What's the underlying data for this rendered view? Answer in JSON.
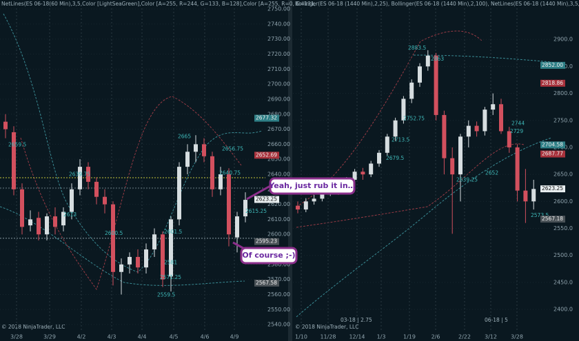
{
  "chart_data": [
    {
      "type": "candlestick",
      "title": "NetLines(ES 06-18(60 Min),3,5,Color [LightSeaGreen],Color [A=255, R=244, G=133, B=128],Color [A=255, R=0, G=131,",
      "footer": "© 2018 NinjaTrader, LLC",
      "x_labels": [
        "3/28",
        "3/29",
        "4/2",
        "4/3",
        "4/4",
        "4/5",
        "4/6",
        "4/9"
      ],
      "open": [
        2675,
        2668,
        2630,
        2606,
        2611,
        2600,
        2612,
        2606,
        2615,
        2630,
        2645,
        2635,
        2625,
        2620,
        2575,
        2580,
        2585,
        2578,
        2590,
        2600,
        2572,
        2610,
        2645,
        2655,
        2660,
        2652,
        2630,
        2640,
        2598,
        2612
      ],
      "high": [
        2680,
        2672,
        2634,
        2616,
        2615,
        2614,
        2618,
        2618,
        2634,
        2650,
        2648,
        2638,
        2630,
        2622,
        2584,
        2588,
        2590,
        2594,
        2604,
        2602,
        2612,
        2648,
        2660,
        2666,
        2664,
        2655,
        2645,
        2644,
        2615,
        2628
      ],
      "low": [
        2664,
        2626,
        2600,
        2602,
        2596,
        2596,
        2600,
        2602,
        2610,
        2626,
        2630,
        2620,
        2614,
        2566,
        2560,
        2574,
        2574,
        2574,
        2585,
        2565,
        2562,
        2606,
        2640,
        2648,
        2648,
        2625,
        2626,
        2592,
        2588,
        2608
      ],
      "close": [
        2670,
        2630,
        2605,
        2610,
        2600,
        2612,
        2605,
        2615,
        2630,
        2645,
        2635,
        2625,
        2620,
        2575,
        2580,
        2585,
        2578,
        2590,
        2600,
        2570,
        2610,
        2645,
        2655,
        2660,
        2652,
        2630,
        2640,
        2600,
        2612,
        2623
      ],
      "ylim": [
        2535,
        2756
      ],
      "yticks": [
        {
          "value": 2540,
          "label": "2540.00"
        },
        {
          "value": 2550,
          "label": "2550.00"
        },
        {
          "value": 2560,
          "label": "2560.00"
        },
        {
          "value": 2570,
          "label": "2570.00"
        },
        {
          "value": 2580,
          "label": "2580.00"
        },
        {
          "value": 2590,
          "label": "2590.00"
        },
        {
          "value": 2600,
          "label": "2600.00"
        },
        {
          "value": 2610,
          "label": "2610.00"
        },
        {
          "value": 2620,
          "label": "2620.00"
        },
        {
          "value": 2630,
          "label": "2630.00"
        },
        {
          "value": 2640,
          "label": "2640.00"
        },
        {
          "value": 2650,
          "label": "2650.00"
        },
        {
          "value": 2660,
          "label": "2660.00"
        },
        {
          "value": 2670,
          "label": "2670.00"
        },
        {
          "value": 2680,
          "label": "2680.00"
        },
        {
          "value": 2690,
          "label": "2690.00"
        },
        {
          "value": 2700,
          "label": "2700.00"
        },
        {
          "value": 2710,
          "label": "2710.00"
        },
        {
          "value": 2720,
          "label": "2720.00"
        },
        {
          "value": 2730,
          "label": "2730.00"
        },
        {
          "value": 2740,
          "label": "2740.00"
        },
        {
          "value": 2750,
          "label": "2750.00"
        }
      ],
      "hlines": [
        {
          "value": 2637.7,
          "color": "#c8c83a"
        },
        {
          "value": 2630.8,
          "color": "#6b7c84"
        },
        {
          "value": 2597.4,
          "color": "#8a9aa2"
        }
      ],
      "price_markers": [
        {
          "value": 2677.32,
          "color": "#2e7f86"
        },
        {
          "value": 2652.69,
          "color": "#a8323c"
        },
        {
          "value": 2623.25,
          "color": "#e8eef0"
        },
        {
          "value": 2595.23,
          "color": "#4a5257"
        },
        {
          "value": 2567.58,
          "color": "#4a5257"
        }
      ],
      "levels": [
        2659.5,
        2639.75,
        2613,
        2600.5,
        2601.5,
        2581,
        2571.25,
        2559.5,
        2665,
        2656.75,
        2640.75,
        2615.25
      ],
      "annotations": [
        "Yeah, just rub it in…",
        "Of course ;-)"
      ]
    },
    {
      "type": "candlestick",
      "title": "Bollinger(ES 06-18 (1440 Min),2,25), Bollinger(ES 06-18 (1440 Min),2,100), NetLines(ES 06-18 (1440 Min),3,5,Color",
      "footer": "© 2018 NinjaTrader, LLC",
      "x_labels": [
        "1/10",
        "11/28",
        "12/14",
        "1/3",
        "1/19",
        "2/6",
        "2/22",
        "3/12",
        "3/28"
      ],
      "session_labels": [
        "03-18 | 2.75",
        "06-18 | 5"
      ],
      "open": [
        2592,
        2585,
        2600,
        2605,
        2615,
        2625,
        2620,
        2640,
        2655,
        2650,
        2670,
        2690,
        2720,
        2750,
        2790,
        2820,
        2850,
        2870,
        2760,
        2680,
        2650,
        2720,
        2740,
        2730,
        2770,
        2780,
        2730,
        2700,
        2620,
        2600
      ],
      "high": [
        2600,
        2606,
        2612,
        2620,
        2630,
        2632,
        2645,
        2660,
        2662,
        2675,
        2695,
        2725,
        2755,
        2795,
        2826,
        2856,
        2880,
        2875,
        2768,
        2700,
        2725,
        2750,
        2748,
        2775,
        2800,
        2790,
        2738,
        2706,
        2660,
        2640
      ],
      "low": [
        2578,
        2580,
        2594,
        2600,
        2610,
        2612,
        2615,
        2635,
        2640,
        2645,
        2664,
        2685,
        2712,
        2744,
        2782,
        2812,
        2842,
        2750,
        2650,
        2540,
        2600,
        2700,
        2720,
        2722,
        2760,
        2725,
        2690,
        2600,
        2560,
        2585
      ],
      "close": [
        2585,
        2600,
        2605,
        2615,
        2625,
        2620,
        2640,
        2655,
        2650,
        2670,
        2690,
        2720,
        2750,
        2790,
        2820,
        2850,
        2870,
        2760,
        2680,
        2650,
        2720,
        2740,
        2730,
        2770,
        2780,
        2730,
        2700,
        2620,
        2600,
        2623
      ],
      "ylim": [
        2358,
        2973
      ],
      "yticks": [
        {
          "value": 2400,
          "label": "2400.0"
        },
        {
          "value": 2450,
          "label": "2450.0"
        },
        {
          "value": 2500,
          "label": "2500.0"
        },
        {
          "value": 2550,
          "label": "2550.0"
        },
        {
          "value": 2600,
          "label": "2600.0"
        },
        {
          "value": 2650,
          "label": "2650.0"
        },
        {
          "value": 2700,
          "label": "2700.0"
        },
        {
          "value": 2750,
          "label": "2750.0"
        },
        {
          "value": 2800,
          "label": "2800.0"
        },
        {
          "value": 2850,
          "label": "2850.0"
        },
        {
          "value": 2900,
          "label": "2900.0"
        }
      ],
      "price_markers": [
        {
          "value": 2852,
          "label": "2852.00",
          "color": "#2e7f86"
        },
        {
          "value": 2818.86,
          "color": "#a8323c"
        },
        {
          "value": 2704.58,
          "color": "#2e7f86"
        },
        {
          "value": 2687.77,
          "color": "#a8323c"
        },
        {
          "value": 2623.25,
          "color": "#e8eef0"
        },
        {
          "value": 2567.18,
          "color": "#4a5257"
        }
      ],
      "levels": [
        2883.5,
        2863,
        2752.75,
        2713.5,
        2679.5,
        2652,
        2744,
        2729,
        2639.25,
        2573.5
      ]
    }
  ]
}
